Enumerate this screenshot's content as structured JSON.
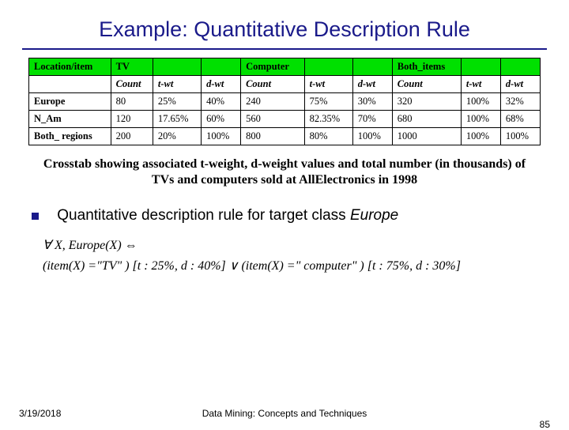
{
  "title": "Example: Quantitative Description Rule",
  "table": {
    "header_bg": "#00e000",
    "header_row1": [
      "Location/item",
      "TV",
      "",
      "",
      "Computer",
      "",
      "",
      "Both_items",
      "",
      ""
    ],
    "header_row2": [
      "",
      "Count",
      "t-wt",
      "d-wt",
      "Count",
      "t-wt",
      "d-wt",
      "Count",
      "t-wt",
      "d-wt"
    ],
    "rows": [
      [
        "Europe",
        "80",
        "25%",
        "40%",
        "240",
        "75%",
        "30%",
        "320",
        "100%",
        "32%"
      ],
      [
        "N_Am",
        "120",
        "17.65%",
        "60%",
        "560",
        "82.35%",
        "70%",
        "680",
        "100%",
        "68%"
      ],
      [
        "Both_ regions",
        "200",
        "20%",
        "100%",
        "800",
        "80%",
        "100%",
        "1000",
        "100%",
        "100%"
      ]
    ]
  },
  "caption": "Crosstab showing associated t-weight, d-weight values and total number (in thousands) of TVs and computers sold at AllElectronics in 1998",
  "bullet": {
    "prefix": "Quantitative description rule for target class ",
    "target": "Europe"
  },
  "formula": {
    "line1": "∀ X, Europe(X) ⇔",
    "line2": "(item(X) =\"TV\" ) [t : 25%, d : 40%] ∨ (item(X) =\" computer\" ) [t : 75%, d : 30%]"
  },
  "footer": {
    "date": "3/19/2018",
    "center": "Data Mining: Concepts and Techniques",
    "page": "85"
  }
}
